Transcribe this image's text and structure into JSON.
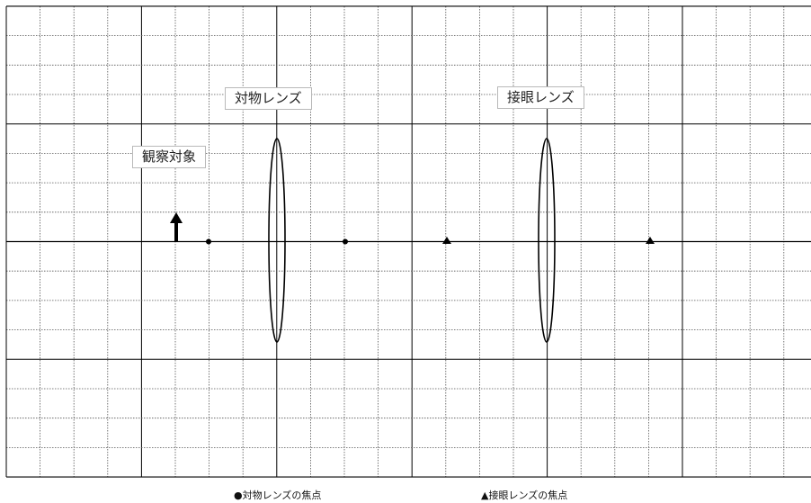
{
  "labels": {
    "objective_lens": "対物レンズ",
    "eyepiece_lens": "接眼レンズ",
    "observed_object": "観察対象"
  },
  "legend": {
    "objective_focus": "●対物レンズの焦点",
    "eyepiece_focus": "▲接眼レンズの焦点"
  },
  "colors": {
    "grid_major": "#000000",
    "grid_minor": "#555555",
    "ink": "#000000"
  }
}
